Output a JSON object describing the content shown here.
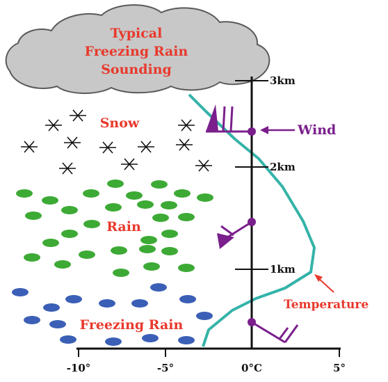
{
  "cloud": {
    "title_lines": [
      "Typical",
      "Freezing Rain",
      "Sounding"
    ]
  },
  "layers": {
    "snow": "Snow",
    "rain": "Rain",
    "freezing_rain": "Freezing Rain"
  },
  "altitude_ticks": [
    "3km",
    "2km",
    "1km"
  ],
  "temperature_axis": {
    "ticks": [
      "-10°",
      "-5°",
      "0°C",
      "5°"
    ]
  },
  "annotations": {
    "wind": "Wind",
    "temperature": "Temperature"
  },
  "colors": {
    "cloud": "#c8c8c8",
    "rain": "#3daa35",
    "freezing_rain": "#3b5fb6",
    "temperature_line": "#34b3a8",
    "wind": "#7a1f8c",
    "label_red": "#e8392c"
  }
}
